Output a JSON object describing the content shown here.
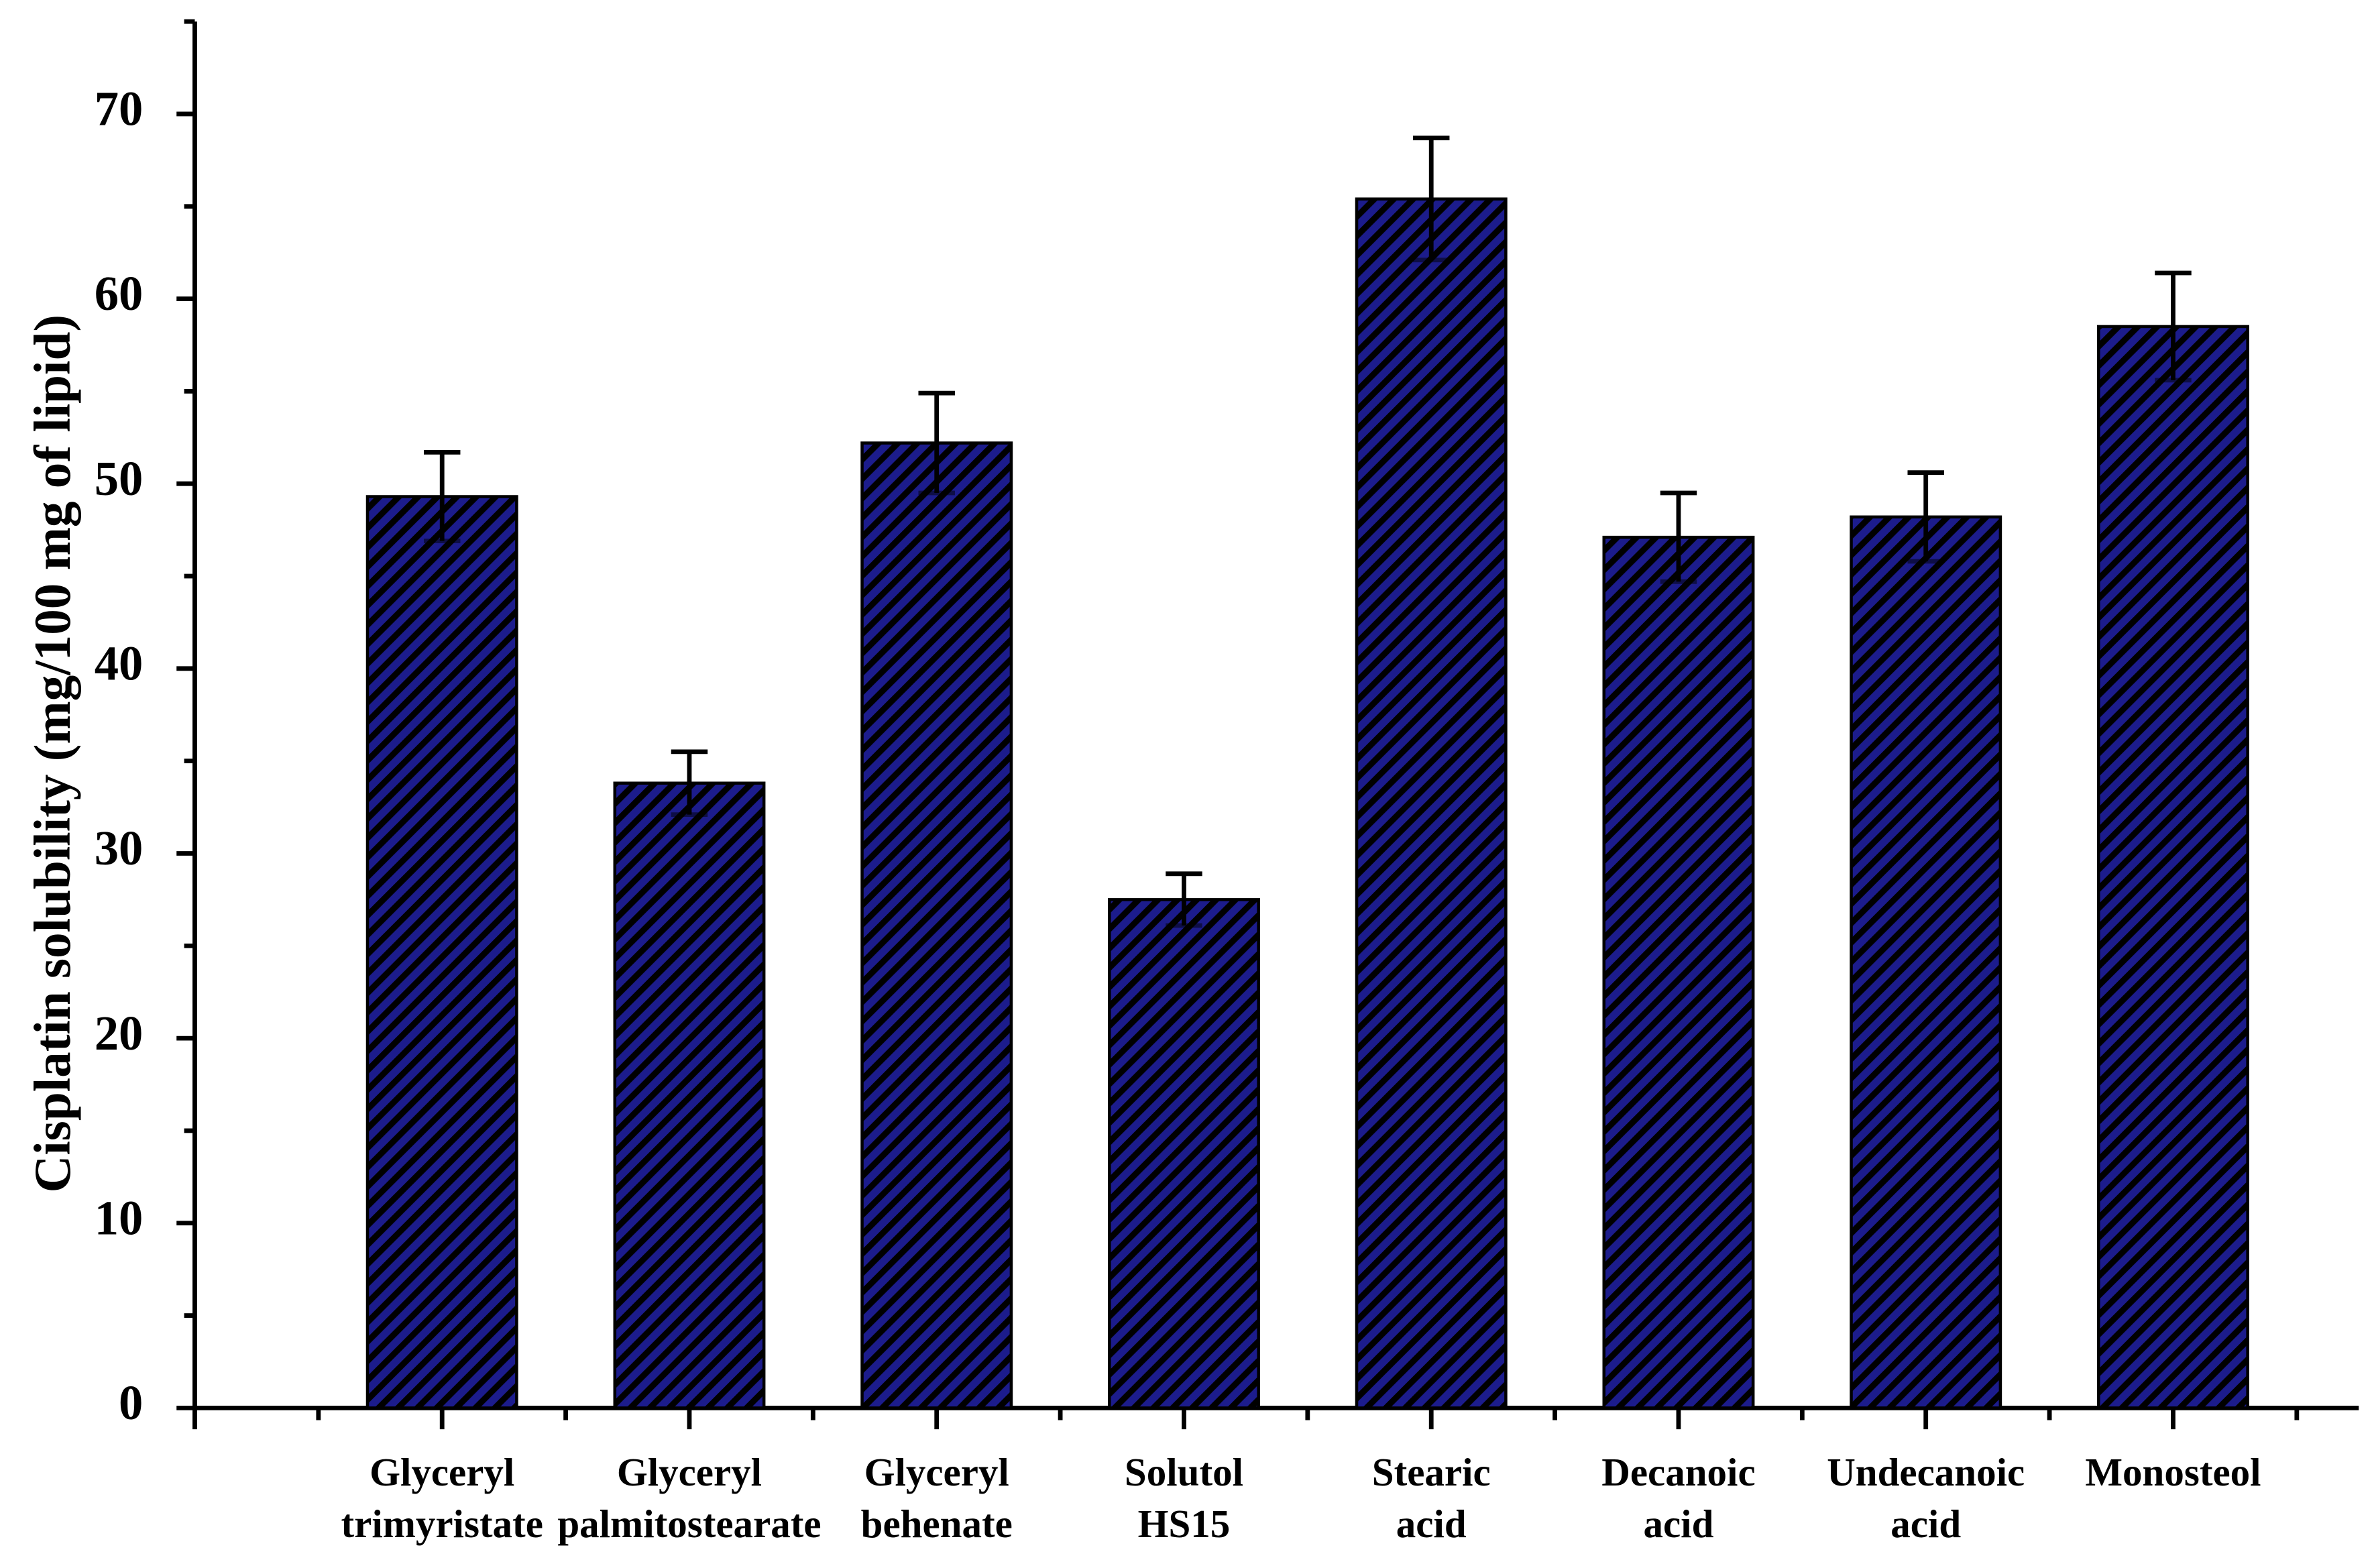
{
  "chart_data": {
    "type": "bar",
    "y_label": "Cisplatin solubility (mg/100 mg of lipid)",
    "categories": [
      [
        "Glyceryl",
        "trimyristate"
      ],
      [
        "Glyceryl",
        "palmitostearate"
      ],
      [
        "Glyceryl",
        "behenate"
      ],
      [
        "Solutol",
        "HS15"
      ],
      [
        "Stearic",
        "acid"
      ],
      [
        "Decanoic",
        "acid"
      ],
      [
        "Undecanoic",
        "acid"
      ],
      [
        "Monosteol"
      ]
    ],
    "values": [
      49.3,
      33.8,
      52.2,
      27.5,
      65.4,
      47.1,
      48.2,
      58.5
    ],
    "errors": [
      2.4,
      1.7,
      2.7,
      1.4,
      3.3,
      2.4,
      2.4,
      2.9
    ],
    "color": "#1c1c8c",
    "ylim": [
      0,
      75
    ],
    "yticks": [
      0,
      10,
      20,
      30,
      40,
      50,
      60,
      70
    ],
    "grid": false
  }
}
